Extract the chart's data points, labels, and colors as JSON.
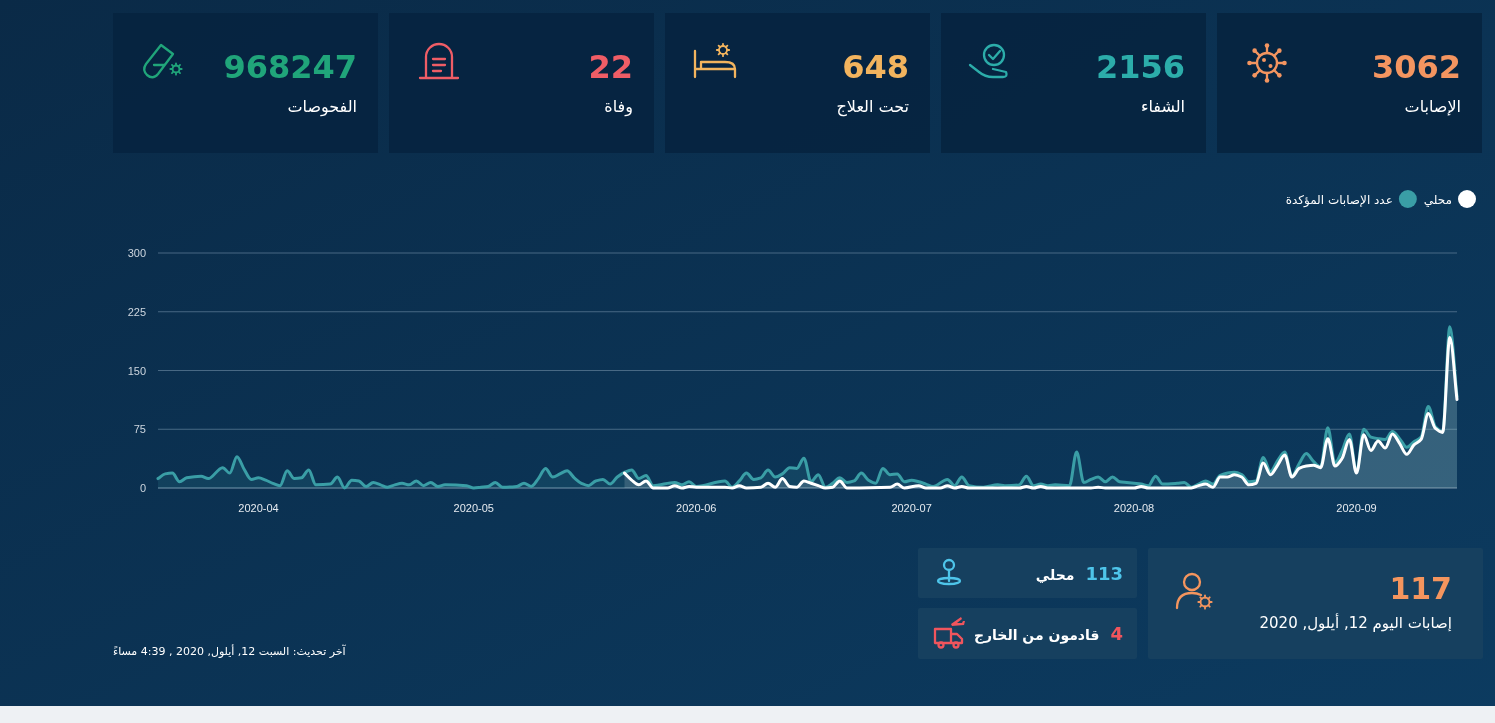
{
  "chart_data": [
    {
      "type": "other",
      "title": "968247",
      "subtitle": "الفحوصات"
    },
    {
      "type": "other",
      "title": "22",
      "subtitle": "وفاة"
    },
    {
      "type": "other",
      "title": "648",
      "subtitle": "تحت العلاج"
    },
    {
      "type": "other",
      "title": "2156",
      "subtitle": "الشفاء"
    },
    {
      "type": "other",
      "title": "3062",
      "subtitle": "الإصابات"
    },
    {
      "type": "area",
      "series": [
        {
          "name": "محلي",
          "color": "#ffffff",
          "x": [
            "2020-05-22",
            "2020-05-23",
            "2020-05-24",
            "2020-05-25",
            "2020-05-26",
            "2020-05-28",
            "2020-05-29",
            "2020-05-30",
            "2020-05-31",
            "2020-06-01",
            "2020-06-05",
            "2020-06-06",
            "2020-06-07",
            "2020-06-08",
            "2020-06-10",
            "2020-06-11",
            "2020-06-12",
            "2020-06-13",
            "2020-06-14",
            "2020-06-15",
            "2020-06-16",
            "2020-06-17",
            "2020-06-18",
            "2020-06-19",
            "2020-06-20",
            "2020-06-21",
            "2020-06-22",
            "2020-06-28",
            "2020-06-29",
            "2020-06-30",
            "2020-07-02",
            "2020-07-03",
            "2020-07-05",
            "2020-07-06",
            "2020-07-07",
            "2020-07-08",
            "2020-07-09",
            "2020-07-16",
            "2020-07-17",
            "2020-07-18",
            "2020-07-19",
            "2020-07-20",
            "2020-07-26",
            "2020-07-27",
            "2020-07-28",
            "2020-08-01",
            "2020-08-02",
            "2020-08-03",
            "2020-08-09",
            "2020-08-10",
            "2020-08-11",
            "2020-08-12",
            "2020-08-13",
            "2020-08-14",
            "2020-08-15",
            "2020-08-16",
            "2020-08-17",
            "2020-08-18",
            "2020-08-19",
            "2020-08-20",
            "2020-08-21",
            "2020-08-22",
            "2020-08-23",
            "2020-08-24",
            "2020-08-25",
            "2020-08-26",
            "2020-08-27",
            "2020-08-28",
            "2020-08-29",
            "2020-08-30",
            "2020-08-31",
            "2020-09-01",
            "2020-09-02",
            "2020-09-03",
            "2020-09-04",
            "2020-09-05",
            "2020-09-06",
            "2020-09-07",
            "2020-09-08",
            "2020-09-09",
            "2020-09-10",
            "2020-09-11",
            "2020-09-12",
            "2020-09-13",
            "2020-09-14",
            "2020-09-15"
          ],
          "values": [
            19,
            10,
            4,
            9,
            0,
            0,
            3,
            0,
            2,
            1,
            1,
            0,
            3,
            0,
            1,
            6,
            1,
            12,
            2,
            1,
            9,
            6,
            3,
            0,
            1,
            9,
            0,
            1,
            5,
            0,
            3,
            0,
            0,
            3,
            0,
            2,
            0,
            0,
            2,
            0,
            2,
            0,
            0,
            1,
            0,
            0,
            2,
            0,
            0,
            3,
            5,
            1,
            14,
            14,
            17,
            14,
            4,
            6,
            32,
            17,
            29,
            42,
            14,
            25,
            28,
            29,
            26,
            63,
            28,
            38,
            62,
            19,
            68,
            48,
            60,
            51,
            69,
            57,
            43,
            55,
            62,
            95,
            76,
            71,
            192,
            113
          ]
        },
        {
          "name": "عدد الإصابات المؤكدة",
          "color": "#3a9ea6",
          "x": [
            "2020-03-18",
            "2020-03-19",
            "2020-03-20",
            "2020-03-21",
            "2020-03-22",
            "2020-03-24",
            "2020-03-25",
            "2020-03-27",
            "2020-03-28",
            "2020-03-29",
            "2020-03-30",
            "2020-03-31",
            "2020-04-01",
            "2020-04-02",
            "2020-04-03",
            "2020-04-04",
            "2020-04-05",
            "2020-04-06",
            "2020-04-07",
            "2020-04-08",
            "2020-04-09",
            "2020-04-11",
            "2020-04-12",
            "2020-04-13",
            "2020-04-14",
            "2020-04-15",
            "2020-04-16",
            "2020-04-17",
            "2020-04-18",
            "2020-04-19",
            "2020-04-20",
            "2020-04-21",
            "2020-04-22",
            "2020-04-23",
            "2020-04-24",
            "2020-04-25",
            "2020-04-26",
            "2020-04-27",
            "2020-04-30",
            "2020-05-01",
            "2020-05-02",
            "2020-05-03",
            "2020-05-04",
            "2020-05-05",
            "2020-05-07",
            "2020-05-08",
            "2020-05-09",
            "2020-05-10",
            "2020-05-11",
            "2020-05-12",
            "2020-05-13",
            "2020-05-14",
            "2020-05-15",
            "2020-05-16",
            "2020-05-17",
            "2020-05-18",
            "2020-05-19",
            "2020-05-20",
            "2020-05-21",
            "2020-05-22",
            "2020-05-23",
            "2020-05-24",
            "2020-05-25",
            "2020-05-26",
            "2020-05-29",
            "2020-05-30",
            "2020-05-31",
            "2020-06-01",
            "2020-06-05",
            "2020-06-06",
            "2020-06-07",
            "2020-06-08",
            "2020-06-09",
            "2020-06-10",
            "2020-06-11",
            "2020-06-12",
            "2020-06-13",
            "2020-06-14",
            "2020-06-15",
            "2020-06-16",
            "2020-06-17",
            "2020-06-18",
            "2020-06-19",
            "2020-06-20",
            "2020-06-21",
            "2020-06-22",
            "2020-06-23",
            "2020-06-24",
            "2020-06-25",
            "2020-06-26",
            "2020-06-27",
            "2020-06-28",
            "2020-06-29",
            "2020-06-30",
            "2020-07-01",
            "2020-07-02",
            "2020-07-03",
            "2020-07-04",
            "2020-07-06",
            "2020-07-07",
            "2020-07-08",
            "2020-07-09",
            "2020-07-11",
            "2020-07-13",
            "2020-07-14",
            "2020-07-16",
            "2020-07-17",
            "2020-07-18",
            "2020-07-19",
            "2020-07-20",
            "2020-07-21",
            "2020-07-23",
            "2020-07-24",
            "2020-07-25",
            "2020-07-26",
            "2020-07-27",
            "2020-07-28",
            "2020-07-29",
            "2020-07-30",
            "2020-07-31",
            "2020-08-01",
            "2020-08-02",
            "2020-08-03",
            "2020-08-04",
            "2020-08-05",
            "2020-08-07",
            "2020-08-08",
            "2020-08-09",
            "2020-08-10",
            "2020-08-11",
            "2020-08-12",
            "2020-08-13",
            "2020-08-15",
            "2020-08-16",
            "2020-08-17",
            "2020-08-18",
            "2020-08-19",
            "2020-08-20",
            "2020-08-21",
            "2020-08-22",
            "2020-08-23",
            "2020-08-24",
            "2020-08-25",
            "2020-08-26",
            "2020-08-27",
            "2020-08-28",
            "2020-08-29",
            "2020-08-30",
            "2020-08-31",
            "2020-09-01",
            "2020-09-02",
            "2020-09-03",
            "2020-09-04",
            "2020-09-05",
            "2020-09-06",
            "2020-09-07",
            "2020-09-08",
            "2020-09-09",
            "2020-09-10",
            "2020-09-11",
            "2020-09-12",
            "2020-09-13",
            "2020-09-14",
            "2020-09-15"
          ],
          "values": [
            12,
            18,
            19,
            8,
            13,
            15,
            12,
            26,
            19,
            40,
            24,
            11,
            13,
            10,
            6,
            3,
            22,
            12,
            13,
            23,
            4,
            5,
            14,
            0,
            10,
            9,
            2,
            7,
            4,
            1,
            4,
            6,
            4,
            9,
            3,
            7,
            2,
            4,
            3,
            0,
            1,
            2,
            7,
            1,
            2,
            6,
            2,
            12,
            25,
            14,
            18,
            22,
            13,
            6,
            3,
            9,
            11,
            5,
            14,
            20,
            23,
            12,
            16,
            3,
            7,
            4,
            8,
            2,
            9,
            1,
            9,
            19,
            11,
            13,
            23,
            14,
            18,
            26,
            25,
            38,
            8,
            17,
            1,
            6,
            13,
            7,
            9,
            19,
            10,
            6,
            25,
            17,
            18,
            8,
            10,
            8,
            5,
            2,
            11,
            3,
            14,
            3,
            1,
            4,
            3,
            4,
            15,
            3,
            5,
            3,
            4,
            3,
            46,
            7,
            11,
            14,
            8,
            14,
            8,
            7,
            6,
            5,
            3,
            15,
            5,
            6,
            7,
            1,
            5,
            9,
            5,
            16,
            20,
            17,
            8,
            9,
            39,
            21,
            35,
            46,
            15,
            31,
            44,
            34,
            27,
            77,
            32,
            48,
            69,
            20,
            75,
            65,
            63,
            62,
            72,
            63,
            52,
            59,
            65,
            104,
            78,
            72,
            206,
            117
          ]
        }
      ],
      "xlim": [
        "2020-03-18",
        "2020-09-15"
      ],
      "xticks": [
        "2020-04",
        "2020-05",
        "2020-06",
        "2020-07",
        "2020-08",
        "2020-09"
      ],
      "ylim": [
        0,
        300
      ],
      "yticks": [
        0,
        75,
        150,
        225,
        300
      ],
      "grid": "y",
      "legend": "top right",
      "annotations": [
        "آخر تحديث: السبت 12, أيلول, 2020 , 4:39 مساءً"
      ]
    },
    {
      "type": "other",
      "title": "113",
      "subtitle": "محلي"
    },
    {
      "type": "other",
      "title": "4",
      "subtitle": "قادمون من الخارج"
    },
    {
      "type": "other",
      "title": "117",
      "subtitle": "إصابات اليوم 12, أيلول, 2020"
    }
  ]
}
